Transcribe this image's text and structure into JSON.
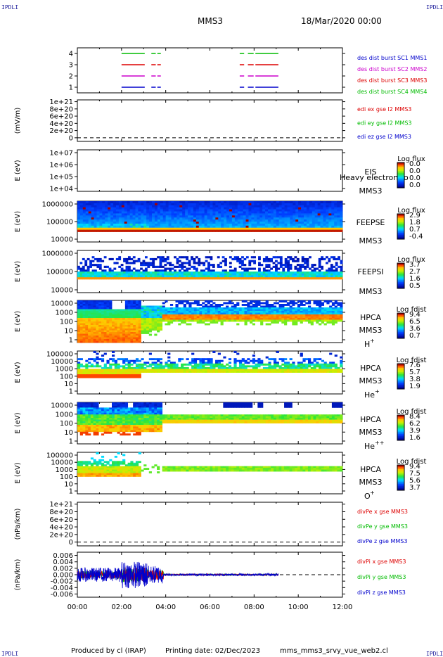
{
  "header": {
    "corner_tl": "IPDLI",
    "corner_tr": "IPDLI",
    "corner_bl": "IPDLI",
    "corner_br": "IPDLI",
    "spacecraft": "MMS3",
    "date": "18/Mar/2020 00:00"
  },
  "footer": {
    "produced_by": "Produced by cl (IRAP)",
    "printing_date": "Printing date: 02/Dec/2023",
    "file": "mms_mms3_srvy_vue_web2.cl"
  },
  "chart_data": [
    {
      "type": "line",
      "panel": "des-dist-burst",
      "y_ticks": [
        "4",
        "3",
        "2",
        "1"
      ],
      "ylim": [
        0.5,
        4.5
      ],
      "x_range_hours": [
        0,
        12
      ],
      "x_tick_labels": [
        "00:00",
        "02:00",
        "04:00",
        "06:00",
        "08:00",
        "10:00",
        "12:00"
      ],
      "legend": [
        {
          "label": "des dist burst SC1 MMS1",
          "color": "#0000cc"
        },
        {
          "label": "des dist burst SC2 MMS2",
          "color": "#cc00cc"
        },
        {
          "label": "des dist burst SC3 MMS3",
          "color": "#dd0000"
        },
        {
          "label": "des dist burst SC4 MMS4",
          "color": "#00bb00"
        }
      ],
      "series": [
        {
          "y": 4,
          "color": "#00bb00",
          "segments": [
            [
              2.0,
              3.05
            ],
            [
              3.35,
              3.55
            ],
            [
              3.62,
              3.78
            ],
            [
              7.35,
              7.55
            ],
            [
              7.72,
              7.98
            ],
            [
              8.06,
              9.1
            ]
          ]
        },
        {
          "y": 3,
          "color": "#dd0000",
          "segments": [
            [
              2.0,
              3.05
            ],
            [
              3.35,
              3.55
            ],
            [
              3.62,
              3.78
            ],
            [
              7.35,
              7.55
            ],
            [
              7.72,
              7.98
            ],
            [
              8.06,
              9.1
            ]
          ]
        },
        {
          "y": 2,
          "color": "#cc00cc",
          "segments": [
            [
              2.0,
              3.05
            ],
            [
              3.35,
              3.55
            ],
            [
              3.62,
              3.78
            ],
            [
              7.35,
              7.55
            ],
            [
              7.72,
              7.98
            ],
            [
              8.06,
              9.1
            ]
          ]
        },
        {
          "y": 1,
          "color": "#0000cc",
          "segments": [
            [
              2.0,
              3.05
            ],
            [
              3.35,
              3.55
            ],
            [
              3.62,
              3.78
            ],
            [
              7.35,
              7.55
            ],
            [
              7.72,
              7.98
            ],
            [
              8.06,
              9.1
            ]
          ]
        }
      ]
    },
    {
      "type": "line",
      "panel": "edi-e-field",
      "ylabel": "(mV/m)",
      "y_ticks": [
        "1e+21",
        "8e+20",
        "6e+20",
        "4e+20",
        "2e+20",
        "0"
      ],
      "ylim": [
        -1e+20,
        1.05e+21
      ],
      "zero_line": "dashed",
      "legend": [
        {
          "label": "edi ex gse l2 MMS3",
          "color": "#dd0000"
        },
        {
          "label": "edi ey gse l2 MMS3",
          "color": "#00bb00"
        },
        {
          "label": "edi ez gse l2 MMS3",
          "color": "#0000cc"
        }
      ]
    },
    {
      "type": "heatmap",
      "panel": "eis",
      "ylabel": "E (eV)",
      "y_ticks": [
        "1e+07",
        "1e+06",
        "1e+05",
        "1e+04"
      ],
      "label_top": "EIS",
      "label_bottom": "MMS3",
      "overlap_text": "Heavy electron to",
      "cb_title": "Log flux",
      "cb_ticks": [
        "0.0",
        "0.0",
        "0.0",
        "0.0"
      ],
      "empty": true
    },
    {
      "type": "heatmap",
      "panel": "feeps-e",
      "ylabel": "E (eV)",
      "y_ticks": [
        "1000000",
        "100000",
        "10000"
      ],
      "label_top": "FEEPSE",
      "label_bottom": "MMS3",
      "cb_title": "Log flux",
      "cb_ticks": [
        "2.9",
        "1.8",
        "0.7",
        "-0.4"
      ]
    },
    {
      "type": "heatmap",
      "panel": "feeps-i",
      "ylabel": "E (eV)",
      "y_ticks": [
        "1000000",
        "100000",
        "10000"
      ],
      "label_top": "FEEPSI",
      "label_bottom": "MMS3",
      "cb_title": "Log flux",
      "cb_ticks": [
        "3.7",
        "2.7",
        "1.6",
        "0.5"
      ]
    },
    {
      "type": "heatmap",
      "panel": "hpca-h",
      "ylabel": "E (eV)",
      "y_ticks": [
        "10000",
        "1000",
        "100",
        "10",
        "1"
      ],
      "label_top": "HPCA",
      "label_mid": "MMS3",
      "species": "H",
      "charge": "+",
      "cb_title": "Log fdist",
      "cb_ticks": [
        "9.4",
        "6.5",
        "3.6",
        "0.7"
      ]
    },
    {
      "type": "heatmap",
      "panel": "hpca-he",
      "ylabel": "E (eV)",
      "y_ticks": [
        "100000",
        "10000",
        "1000",
        "100",
        "10",
        "1"
      ],
      "label_top": "HPCA",
      "label_mid": "MMS3",
      "species": "He",
      "charge": "+",
      "cb_title": "Log fdist",
      "cb_ticks": [
        "7.6",
        "5.7",
        "3.8",
        "1.9"
      ]
    },
    {
      "type": "heatmap",
      "panel": "hpca-hepp",
      "ylabel": "E (eV)",
      "y_ticks": [
        "10000",
        "1000",
        "100",
        "10",
        "1"
      ],
      "label_top": "HPCA",
      "label_mid": "MMS3",
      "species": "He",
      "charge": "++",
      "cb_title": "Log fdist",
      "cb_ticks": [
        "8.4",
        "6.2",
        "3.9",
        "1.6"
      ]
    },
    {
      "type": "heatmap",
      "panel": "hpca-o",
      "ylabel": "E (eV)",
      "y_ticks": [
        "100000",
        "10000",
        "1000",
        "100",
        "10",
        "1"
      ],
      "label_top": "HPCA",
      "label_mid": "MMS3",
      "species": "O",
      "charge": "+",
      "cb_title": "Log fdist",
      "cb_ticks": [
        "9.4",
        "7.5",
        "5.6",
        "3.7"
      ]
    },
    {
      "type": "line",
      "panel": "divpe",
      "ylabel": "(nPa/km)",
      "y_ticks": [
        "1e+21",
        "8e+20",
        "6e+20",
        "4e+20",
        "2e+20",
        "0"
      ],
      "ylim": [
        -1e+20,
        1.05e+21
      ],
      "zero_line": "dashed",
      "legend": [
        {
          "label": "divPe x gse MMS3",
          "color": "#dd0000"
        },
        {
          "label": "divPe y gse MMS3",
          "color": "#00bb00"
        },
        {
          "label": "divPe z gse MMS3",
          "color": "#0000cc"
        }
      ]
    },
    {
      "type": "line",
      "panel": "divpi",
      "ylabel": "(nPa/km)",
      "y_ticks": [
        "0.006",
        "0.004",
        "0.002",
        "0.000",
        "-0.002",
        "-0.004",
        "-0.006"
      ],
      "ylim": [
        -0.007,
        0.007
      ],
      "zero_line": "dashed",
      "data_end_hours": 9.1,
      "legend": [
        {
          "label": "divPi x gse MMS3",
          "color": "#dd0000"
        },
        {
          "label": "divPi y gse MMS3",
          "color": "#00bb00"
        },
        {
          "label": "divPi z gse MMS3",
          "color": "#0000cc"
        }
      ]
    }
  ]
}
